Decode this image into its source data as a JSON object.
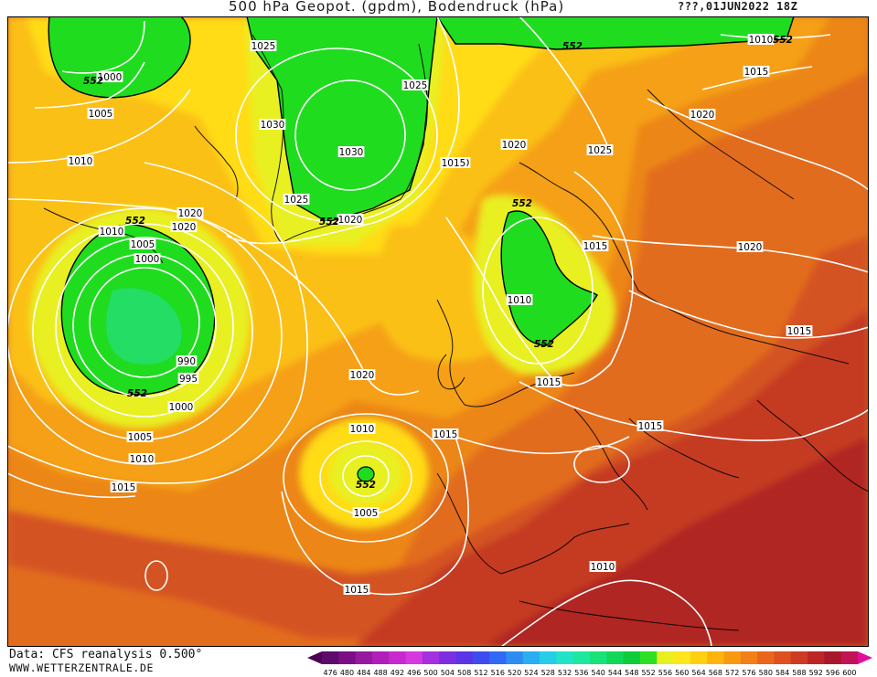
{
  "title": {
    "main": "500 hPa Geopot. (gpdm), Bodendruck (hPa)",
    "date": "???,01JUN2022 18Z"
  },
  "footer": {
    "data_line": "Data: CFS reanalysis 0.500°",
    "site": "WWW.WETTERZENTRALE.DE"
  },
  "legend": {
    "values": [
      "476",
      "480",
      "484",
      "488",
      "492",
      "496",
      "500",
      "504",
      "508",
      "512",
      "516",
      "520",
      "524",
      "528",
      "532",
      "536",
      "540",
      "544",
      "548",
      "552",
      "556",
      "560",
      "564",
      "568",
      "572",
      "576",
      "580",
      "584",
      "588",
      "592",
      "596",
      "600"
    ],
    "colors": [
      "#5c0a6b",
      "#7a0f86",
      "#951a9e",
      "#b01fb8",
      "#c928cf",
      "#d738e0",
      "#a430e0",
      "#7d2ee0",
      "#5a35e8",
      "#3f4af0",
      "#2f6af5",
      "#2d8cf2",
      "#2aaef0",
      "#26cde8",
      "#22e3c8",
      "#1ee8a0",
      "#18e27a",
      "#12d85a",
      "#0fcc3c",
      "#2ee024",
      "#e6f01e",
      "#ffe61a",
      "#ffd010",
      "#ffb40c",
      "#f79a10",
      "#f28016",
      "#ea661c",
      "#df4f20",
      "#cf3a22",
      "#bc2624",
      "#a8182a",
      "#c01454"
    ],
    "endcap_left": "#4b0052",
    "endcap_right": "#e0109a"
  },
  "map": {
    "colors": {
      "fill_552": "#1fdc1f",
      "fill_556": "#e8f020",
      "fill_560": "#ffdc14",
      "fill_564": "#fbc014",
      "fill_568": "#f5a014",
      "fill_572": "#ec8618",
      "fill_576": "#e26c1e",
      "fill_580": "#d45222",
      "fill_584": "#c43a22",
      "fill_588": "#b02620",
      "isobar": "#ffffff",
      "coast": "#000000"
    },
    "geopot_labels": [
      "552",
      "552",
      "552",
      "552",
      "552",
      "552",
      "552",
      "552",
      "552"
    ],
    "isobar_labels": [
      "1000",
      "1005",
      "1010",
      "1025",
      "1025",
      "1030",
      "1030",
      "1025",
      "1020",
      "1020",
      "1020",
      "1025",
      "1010",
      "1005",
      "1000",
      "990",
      "995",
      "1000",
      "1005",
      "1010",
      "1015",
      "1020",
      "1015",
      "1020",
      "1020",
      "1015",
      "1010",
      "1015",
      "1015",
      "1020",
      "1015",
      "1010",
      "1005",
      "1015",
      "1010",
      "1015",
      "1020",
      "1015",
      "1010"
    ]
  }
}
